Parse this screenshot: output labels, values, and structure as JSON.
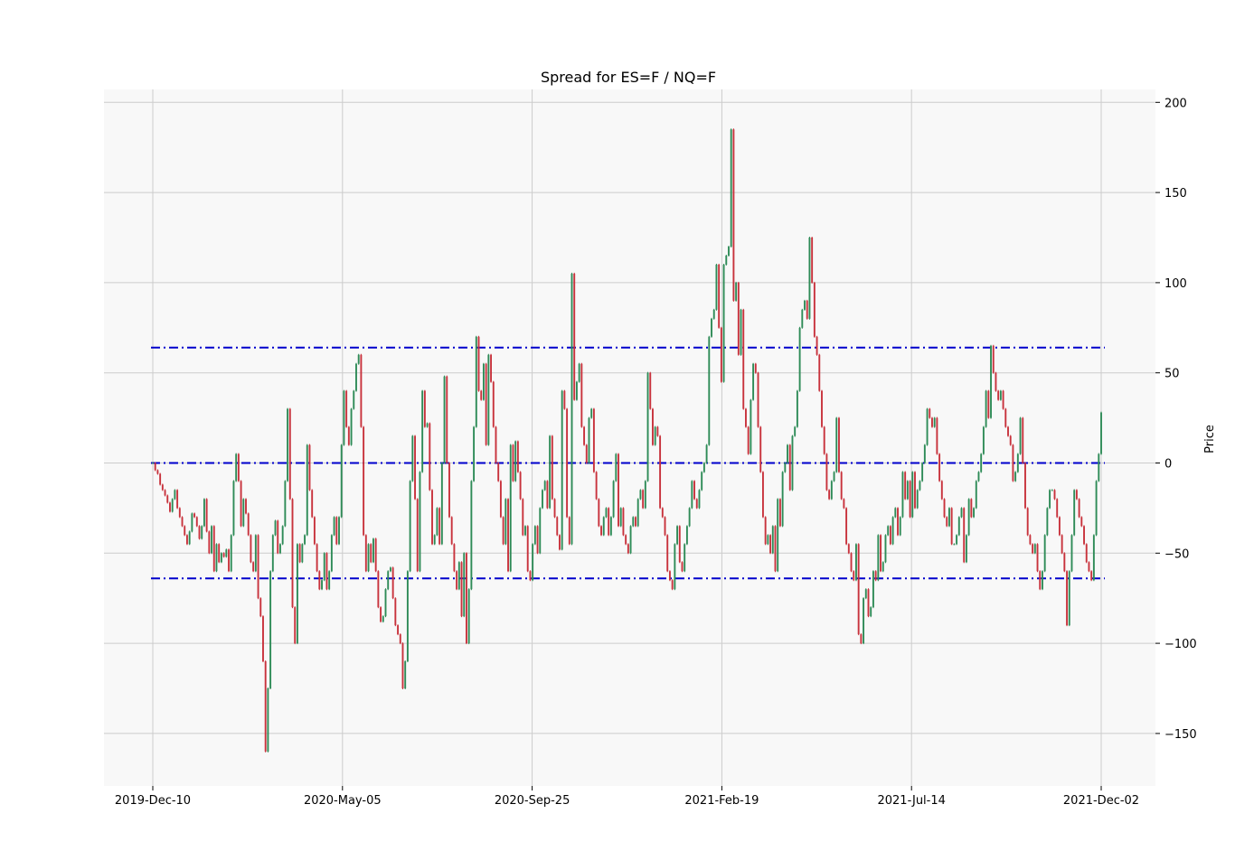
{
  "chart_data": {
    "type": "candlestick",
    "title": "Spread for ES=F / NQ=F",
    "ylabel": "Price",
    "xlabel": "",
    "ylim": [
      -179,
      207
    ],
    "y_ticks": [
      200,
      150,
      100,
      50,
      0,
      -50,
      -100,
      -150
    ],
    "y_tick_labels": [
      "200",
      "150",
      "100",
      "50",
      "0",
      "−50",
      "−100",
      "−150"
    ],
    "x_tick_labels": [
      "2019-Dec-10",
      "2020-May-05",
      "2020-Sep-25",
      "2021-Feb-19",
      "2021-Jul-14",
      "2021-Dec-02"
    ],
    "grid": true,
    "colors": {
      "up": "#2e8b57",
      "down": "#c8323c",
      "bands": "#0000cc",
      "plot_bg": "#f8f8f8",
      "grid": "#cccccc"
    },
    "bands": [
      {
        "y": 64,
        "style": "dash-dot"
      },
      {
        "y": 0,
        "style": "dash-dot"
      },
      {
        "y": -64,
        "style": "dash-dot"
      }
    ],
    "series": [
      {
        "x_start": "2019-Dec-10",
        "x_end": "2021-Dec-02",
        "close": [
          0,
          -4,
          -6,
          -12,
          -15,
          -18,
          -22,
          -27,
          -20,
          -15,
          -25,
          -30,
          -35,
          -40,
          -45,
          -38,
          -28,
          -30,
          -35,
          -42,
          -35,
          -20,
          -38,
          -50,
          -35,
          -60,
          -45,
          -55,
          -50,
          -52,
          -48,
          -60,
          -40,
          -10,
          5,
          -10,
          -35,
          -20,
          -28,
          -40,
          -55,
          -60,
          -40,
          -75,
          -85,
          -110,
          -160,
          -125,
          -60,
          -40,
          -32,
          -50,
          -45,
          -35,
          -10,
          30,
          -20,
          -80,
          -100,
          -45,
          -55,
          -45,
          -40,
          10,
          -15,
          -30,
          -45,
          -60,
          -70,
          -65,
          -50,
          -70,
          -60,
          -40,
          -30,
          -45,
          -30,
          10,
          40,
          20,
          10,
          30,
          40,
          55,
          60,
          20,
          -40,
          -60,
          -45,
          -55,
          -42,
          -60,
          -80,
          -88,
          -85,
          -70,
          -60,
          -58,
          -75,
          -90,
          -95,
          -100,
          -125,
          -110,
          -60,
          -10,
          15,
          -20,
          -60,
          -5,
          40,
          20,
          22,
          -15,
          -45,
          -40,
          -25,
          -45,
          0,
          48,
          0,
          -30,
          -45,
          -60,
          -70,
          -55,
          -85,
          -50,
          -100,
          -70,
          -10,
          20,
          70,
          40,
          35,
          55,
          10,
          60,
          45,
          20,
          0,
          -10,
          -30,
          -45,
          -20,
          -60,
          10,
          -10,
          12,
          -5,
          -20,
          -40,
          -35,
          -60,
          -65,
          -45,
          -35,
          -50,
          -25,
          -15,
          -10,
          -25,
          15,
          -20,
          -30,
          -40,
          -48,
          40,
          30,
          -30,
          -45,
          105,
          35,
          45,
          55,
          20,
          10,
          0,
          25,
          30,
          -5,
          -20,
          -35,
          -40,
          -30,
          -25,
          -40,
          -30,
          -10,
          5,
          -35,
          -25,
          -40,
          -45,
          -50,
          -35,
          -30,
          -35,
          -20,
          -15,
          -25,
          -10,
          50,
          30,
          10,
          20,
          15,
          -25,
          -30,
          -40,
          -60,
          -65,
          -70,
          -45,
          -35,
          -55,
          -60,
          -45,
          -35,
          -25,
          -10,
          -20,
          -25,
          -15,
          -5,
          0,
          10,
          70,
          80,
          85,
          110,
          75,
          45,
          110,
          115,
          120,
          185,
          90,
          100,
          60,
          85,
          30,
          20,
          5,
          35,
          55,
          50,
          20,
          -5,
          -30,
          -45,
          -40,
          -50,
          -35,
          -60,
          -20,
          -35,
          -5,
          0,
          10,
          -15,
          15,
          20,
          40,
          75,
          85,
          90,
          80,
          125,
          100,
          70,
          60,
          40,
          20,
          5,
          -15,
          -20,
          -10,
          -5,
          25,
          -5,
          -20,
          -25,
          -45,
          -50,
          -60,
          -65,
          -45,
          -95,
          -100,
          -75,
          -70,
          -85,
          -80,
          -60,
          -65,
          -40,
          -60,
          -55,
          -40,
          -35,
          -45,
          -30,
          -25,
          -40,
          -30,
          -5,
          -20,
          -10,
          -30,
          -5,
          -25,
          -15,
          -10,
          0,
          10,
          30,
          25,
          20,
          25,
          5,
          -10,
          -20,
          -30,
          -35,
          -25,
          -45,
          -45,
          -40,
          -30,
          -25,
          -55,
          -40,
          -20,
          -30,
          -25,
          -10,
          -5,
          5,
          20,
          40,
          25,
          65,
          50,
          40,
          35,
          40,
          30,
          20,
          15,
          10,
          -10,
          -5,
          5,
          25,
          0,
          -25,
          -40,
          -45,
          -50,
          -45,
          -60,
          -70,
          -60,
          -40,
          -25,
          -15,
          -15,
          -20,
          -30,
          -40,
          -50,
          -60,
          -90,
          -60,
          -40,
          -15,
          -20,
          -30,
          -35,
          -45,
          -55,
          -60,
          -65,
          -40,
          -10,
          5,
          28
        ]
      }
    ]
  }
}
